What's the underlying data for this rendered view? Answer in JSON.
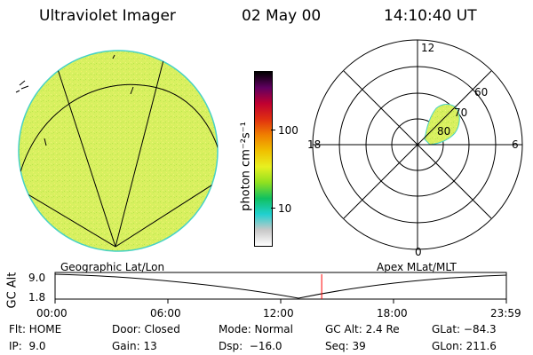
{
  "header": {
    "instrument": "Ultraviolet Imager",
    "date": "02 May 00",
    "time": "14:10:40 UT"
  },
  "colors": {
    "image_fill": "#d8f060",
    "image_edge": "#46d2c6",
    "overlay_lines": "#000000",
    "marker_line": "#ff0000",
    "background": "#ffffff"
  },
  "colorbar": {
    "label": "photon cm⁻²s⁻¹",
    "ticks": [
      "100",
      "10"
    ],
    "stops": [
      "#ffffff",
      "#c8c8c8",
      "#20d0d0",
      "#10c060",
      "#90e020",
      "#e8f020",
      "#f0c000",
      "#f08000",
      "#e03010",
      "#c00030",
      "#600060",
      "#000000"
    ]
  },
  "polar_plot": {
    "labels": {
      "top": "12",
      "left": "18",
      "right": "6",
      "bottom": "0",
      "lat_60": "60",
      "lat_70": "70",
      "lat_80": "80"
    }
  },
  "projections": {
    "left": "Geographic Lat/Lon",
    "right": "Apex MLat/MLT"
  },
  "altitude_plot": {
    "axis_label": "GC Alt",
    "y_ticks": [
      "9.0",
      "1.8"
    ],
    "x_ticks": [
      "00:00",
      "06:00",
      "12:00",
      "18:00",
      "23:59"
    ],
    "current_time_fraction": 0.5908
  },
  "info": {
    "row1": [
      "Flt: HOME",
      "Door: Closed",
      "Mode: Normal",
      "GC Alt: 2.4 Re",
      "GLat: −84.3"
    ],
    "row2": [
      "IP:  9.0",
      "Gain: 13",
      "Dsp:  −16.0",
      "Seq: 39",
      "GLon: 211.6"
    ]
  }
}
